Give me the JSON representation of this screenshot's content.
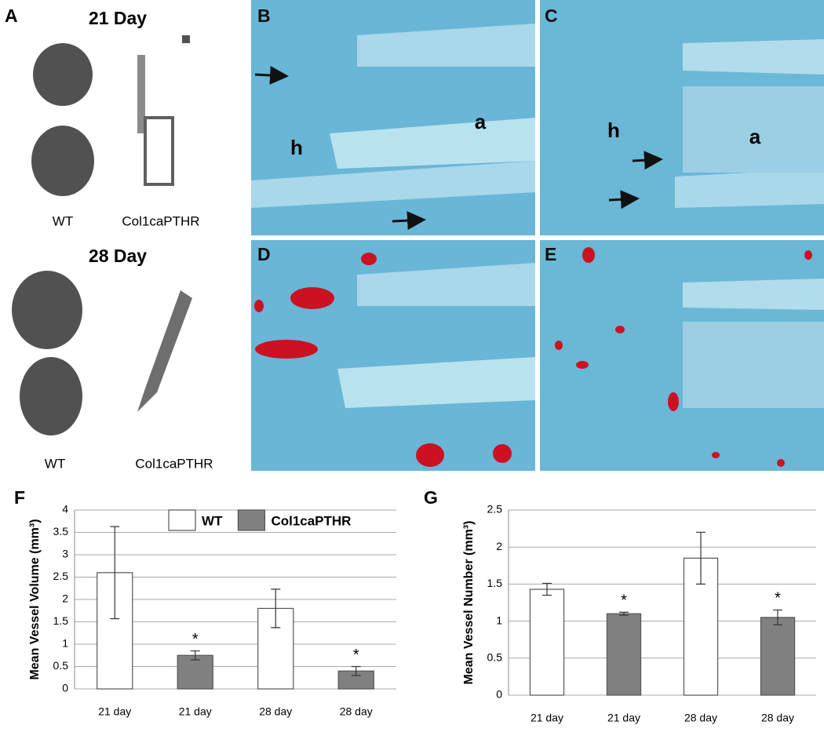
{
  "panel_a": {
    "label": "A",
    "groups": [
      {
        "title": "21 Day",
        "labels": [
          "WT",
          "Col1caPTHR"
        ]
      },
      {
        "title": "28 Day",
        "labels": [
          "WT",
          "Col1caPTHR"
        ]
      }
    ]
  },
  "micrographs": [
    {
      "label": "B",
      "annotations": [
        "h",
        "a"
      ]
    },
    {
      "label": "C",
      "annotations": [
        "h",
        "a"
      ]
    },
    {
      "label": "D"
    },
    {
      "label": "E"
    }
  ],
  "chart_data": [
    {
      "type": "bar",
      "label": "F",
      "y_label": "Mean Vessel Volume (mm³)",
      "categories": [
        "21 day",
        "21 day",
        "28 day",
        "28 day"
      ],
      "series": [
        {
          "name": "WT",
          "color": "#ffffff",
          "values": [
            2.6,
            null,
            1.8,
            null
          ],
          "errors": [
            1.03,
            null,
            0.43,
            null
          ]
        },
        {
          "name": "Col1caPTHR",
          "color": "#808080",
          "values": [
            null,
            0.75,
            null,
            0.4
          ],
          "errors": [
            null,
            0.1,
            null,
            0.1
          ],
          "annotations": [
            null,
            "*",
            null,
            "*"
          ]
        }
      ],
      "ylim": [
        0,
        4
      ],
      "yticks": [
        0,
        0.5,
        1,
        1.5,
        2,
        2.5,
        3,
        3.5,
        4
      ],
      "grid": true,
      "legend": "top-right"
    },
    {
      "type": "bar",
      "label": "G",
      "y_label": "Mean Vessel Number (mm³)",
      "categories": [
        "21 day",
        "21 day",
        "28 day",
        "28 day"
      ],
      "series": [
        {
          "color": "#ffffff",
          "values": [
            1.43,
            null,
            1.85,
            null
          ],
          "errors": [
            0.08,
            null,
            0.35,
            null
          ]
        },
        {
          "color": "#808080",
          "values": [
            null,
            1.1,
            null,
            1.05
          ],
          "errors": [
            null,
            0.02,
            null,
            0.1
          ],
          "annotations": [
            null,
            "*",
            null,
            "*"
          ]
        }
      ],
      "ylim": [
        0,
        2.5
      ],
      "yticks": [
        0,
        0.5,
        1,
        1.5,
        2,
        2.5
      ],
      "grid": true,
      "legend": false
    }
  ]
}
